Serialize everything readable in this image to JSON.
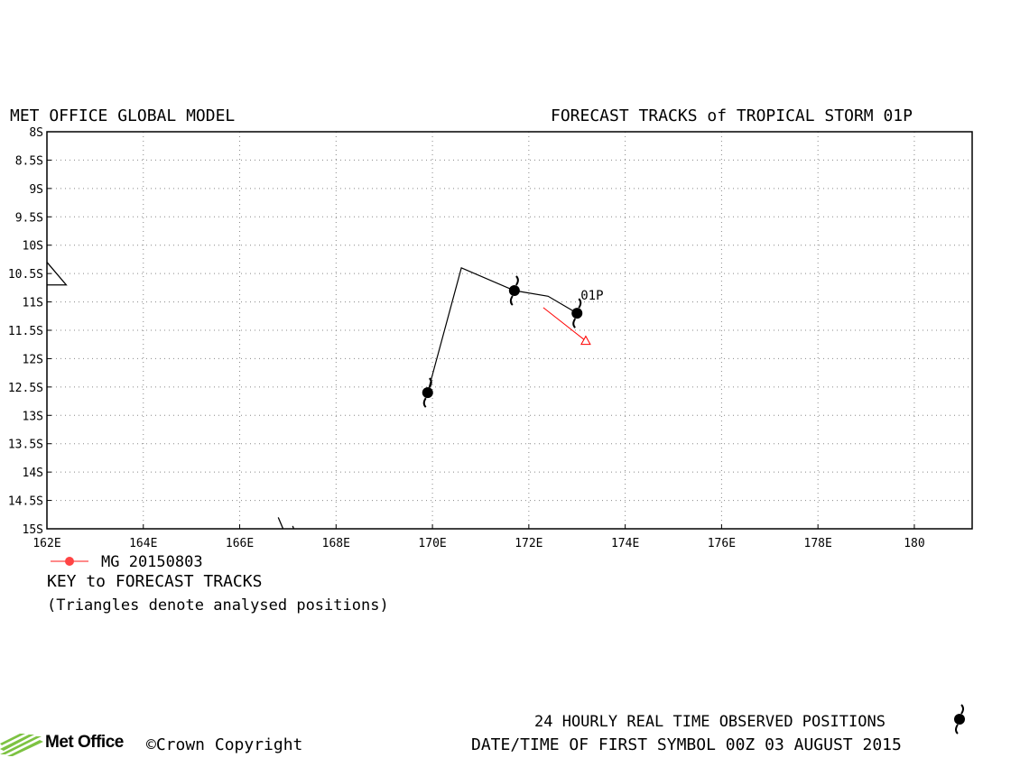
{
  "header": {
    "left_title": "MET OFFICE GLOBAL MODEL",
    "right_title": "FORECAST TRACKS of TROPICAL STORM 01P"
  },
  "axes": {
    "y_ticks": [
      "8S",
      "8.5S",
      "9S",
      "9.5S",
      "10S",
      "10.5S",
      "11S",
      "11.5S",
      "12S",
      "12.5S",
      "13S",
      "13.5S",
      "14S",
      "14.5S",
      "15S"
    ],
    "x_ticks": [
      "162E",
      "164E",
      "166E",
      "168E",
      "170E",
      "172E",
      "174E",
      "176E",
      "178E",
      "180"
    ]
  },
  "chart_data": {
    "type": "map-track",
    "lon_range": [
      162,
      181.2
    ],
    "lat_range": [
      -15,
      -8
    ],
    "grid": true,
    "storm_label": "01P",
    "colors": {
      "track": "#000000",
      "forecast": "#ff0000",
      "legend_marker": "#ff4444"
    },
    "observed_track": [
      {
        "lon": 169.9,
        "lat": -12.6,
        "symbol": true
      },
      {
        "lon": 170.6,
        "lat": -10.4,
        "symbol": false
      },
      {
        "lon": 171.7,
        "lat": -10.8,
        "symbol": true
      },
      {
        "lon": 172.4,
        "lat": -10.9,
        "symbol": false
      },
      {
        "lon": 173.0,
        "lat": -11.2,
        "symbol": true
      }
    ],
    "forecast_track": [
      {
        "lon": 172.3,
        "lat": -11.1
      },
      {
        "lon": 173.2,
        "lat": -11.7
      }
    ],
    "coast_fragments": [
      [
        {
          "lon": 162.0,
          "lat": -10.3
        },
        {
          "lon": 162.4,
          "lat": -10.7
        },
        {
          "lon": 162.0,
          "lat": -10.7
        }
      ],
      [
        {
          "lon": 166.8,
          "lat": -14.8
        },
        {
          "lon": 166.9,
          "lat": -15.0
        }
      ],
      [
        {
          "lon": 167.1,
          "lat": -14.95
        },
        {
          "lon": 167.12,
          "lat": -15.0
        }
      ]
    ]
  },
  "legend": {
    "entry_label": "MG 20150803",
    "key_title": "KEY to FORECAST TRACKS",
    "note": "(Triangles denote analysed positions)"
  },
  "footer": {
    "observed_label": "24 HOURLY REAL TIME OBSERVED POSITIONS",
    "date_label": "DATE/TIME OF FIRST SYMBOL 00Z 03 AUGUST 2015",
    "logo_text": "Met Office",
    "copyright": "©Crown Copyright"
  }
}
